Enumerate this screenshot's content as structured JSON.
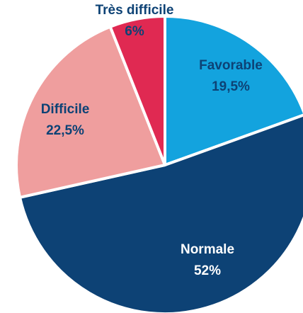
{
  "chart_data": {
    "type": "pie",
    "categories": [
      "Favorable",
      "Normale",
      "Difficile",
      "Très difficile"
    ],
    "values": [
      19.5,
      52,
      22.5,
      6
    ],
    "value_labels": [
      "19,5%",
      "52%",
      "22,5%",
      "6%"
    ],
    "colors": [
      "#13A3DE",
      "#0D4275",
      "#EF9E9E",
      "#E02952"
    ],
    "label_colors": [
      "#0D4275",
      "#FFFFFF",
      "#0D4275",
      "#0D4275"
    ],
    "start_angle_deg": 0,
    "direction": "clockwise",
    "slice_border_color": "#FFFFFF",
    "legend": "none",
    "title": ""
  }
}
